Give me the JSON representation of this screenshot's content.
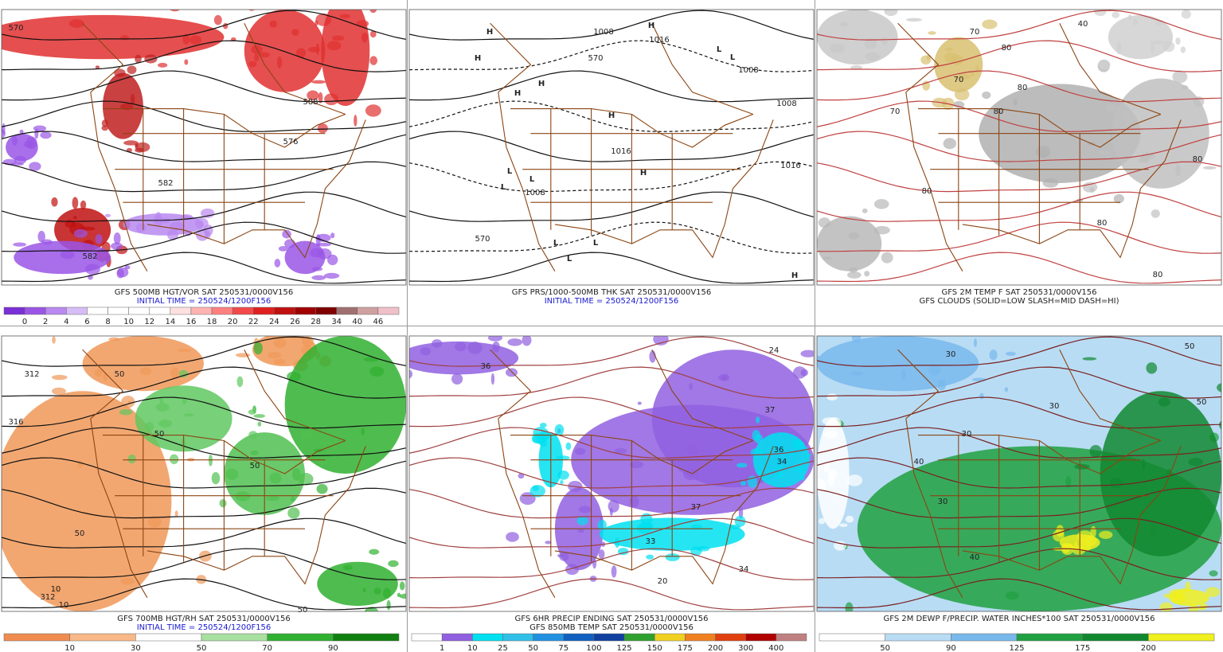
{
  "panels": [
    {
      "title": "GFS 500MB HGT/VOR SAT 250531/0000V156",
      "initial_time": "INITIAL TIME = 250524/1200F156",
      "colorbar": {
        "colors": [
          "#7b2fd6",
          "#9a55e6",
          "#b988f0",
          "#d7bdf6",
          "#ffffff",
          "#ffffff",
          "#ffffff",
          "#ffffff",
          "#ffe0e0",
          "#ffb3b3",
          "#ff8080",
          "#f24a4a",
          "#e02020",
          "#c01010",
          "#a00000",
          "#800000",
          "#a07070",
          "#d0a0a0",
          "#f0c0c8"
        ],
        "labels": [
          "0",
          "2",
          "4",
          "6",
          "8",
          "10",
          "12",
          "14",
          "16",
          "18",
          "20",
          "22",
          "24",
          "26",
          "28",
          "34",
          "40",
          "46"
        ]
      },
      "map_labels": [
        "570",
        "582",
        "588",
        "576",
        "582"
      ]
    },
    {
      "title": "GFS PRS/1000-500MB THK SAT 250531/0000V156",
      "initial_time": "INITIAL TIME = 250524/1200F156",
      "map_labels": [
        "H",
        "H",
        "H",
        "H",
        "H",
        "H",
        "H",
        "H",
        "L",
        "L",
        "L",
        "L",
        "L",
        "L",
        "L",
        "L",
        "1008",
        "1016",
        "1008",
        "1008",
        "1016",
        "1008",
        "1016",
        "570",
        "570"
      ]
    },
    {
      "title": "GFS 2M TEMP F SAT 250531/0000V156",
      "subtitle": "GFS CLOUDS (SOLID=LOW SLASH=MID DASH=HI)",
      "map_labels": [
        "70",
        "80",
        "80",
        "40",
        "70",
        "80",
        "80",
        "70",
        "80",
        "80",
        "80"
      ]
    },
    {
      "title": "GFS 700MB HGT/RH SAT 250531/0000V156",
      "initial_time": "INITIAL TIME = 250524/1200F156",
      "colorbar": {
        "colors": [
          "#f08c50",
          "#f8b888",
          "#ffffff",
          "#a8e0a0",
          "#30b030",
          "#108010"
        ],
        "labels": [
          "10",
          "30",
          "50",
          "70",
          "90"
        ]
      },
      "map_labels": [
        "312",
        "316",
        "50",
        "10",
        "50",
        "312",
        "10",
        "50",
        "50",
        "50"
      ]
    },
    {
      "title": "GFS 6HR PRECIP ENDING SAT 250531/0000V156",
      "subtitle": "GFS 850MB TEMP SAT 250531/0000V156",
      "colorbar": {
        "colors": [
          "#ffffff",
          "#9060e0",
          "#00e0f0",
          "#30c0e8",
          "#2090e0",
          "#1060c0",
          "#1040a0",
          "#30a030",
          "#f0d020",
          "#f08020",
          "#e04010",
          "#b00000",
          "#c08080"
        ],
        "labels": [
          "1",
          "10",
          "25",
          "50",
          "75",
          "100",
          "125",
          "150",
          "175",
          "200",
          "300",
          "400"
        ]
      },
      "map_labels": [
        "36",
        "24",
        "37",
        "36",
        "34",
        "33",
        "37",
        "34",
        "20"
      ]
    },
    {
      "title": "GFS 2M DEWP F/PRECIP. WATER INCHES*100 SAT 250531/0000V156",
      "colorbar": {
        "colors": [
          "#ffffff",
          "#b8dcf4",
          "#78b8ec",
          "#20a040",
          "#108830",
          "#f0f020"
        ],
        "labels": [
          "50",
          "90",
          "125",
          "175",
          "200"
        ]
      },
      "map_labels": [
        "30",
        "50",
        "30",
        "40",
        "30",
        "50",
        "40",
        "30"
      ]
    }
  ]
}
